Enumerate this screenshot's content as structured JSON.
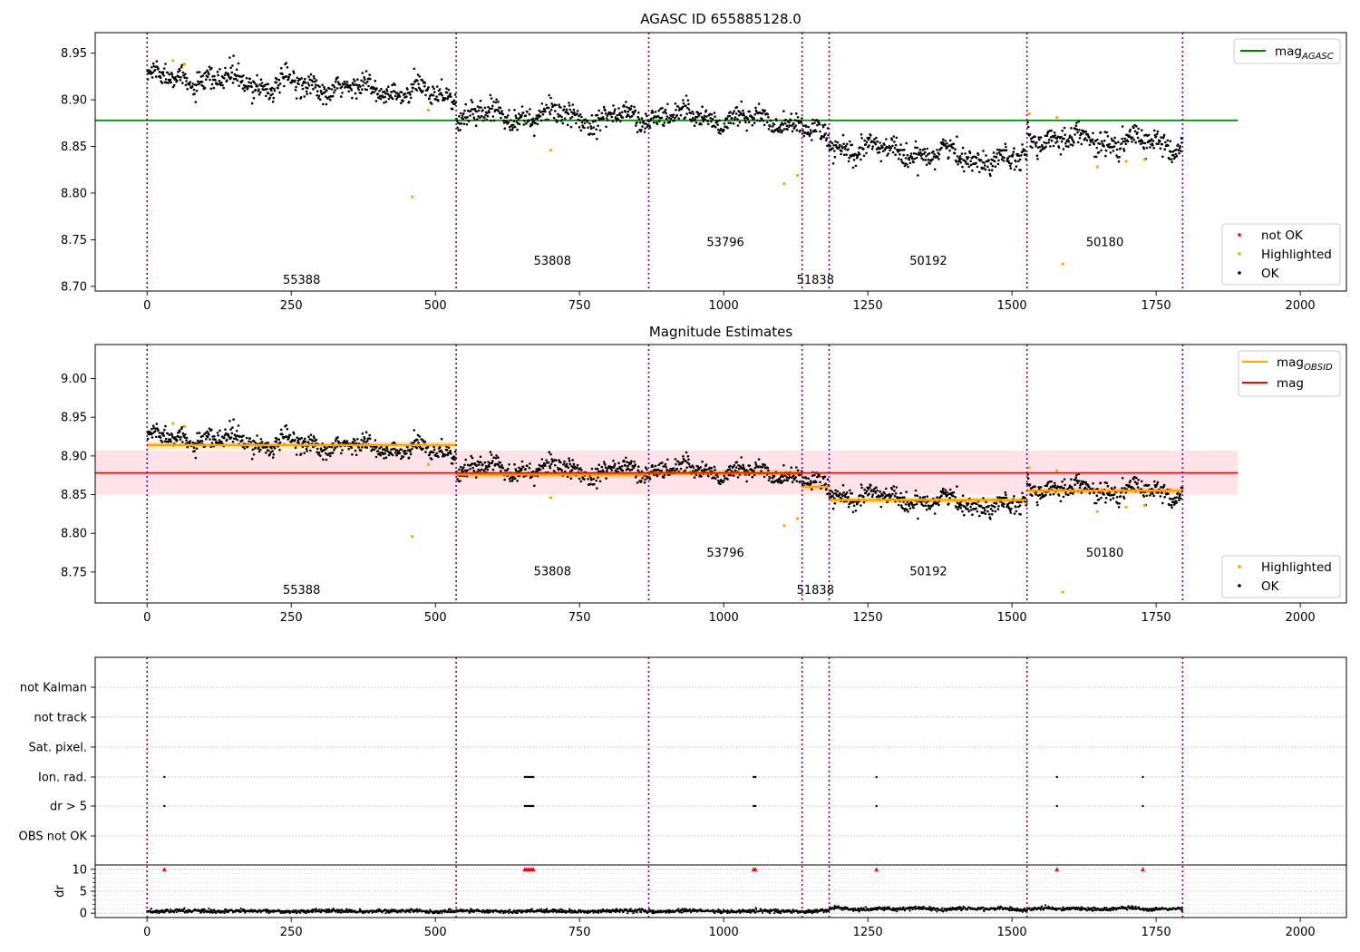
{
  "chart_data": [
    {
      "type": "scatter",
      "title": "AGASC ID 655885128.0",
      "xlabel": "",
      "ylabel": "",
      "xlim": [
        -90,
        2080
      ],
      "ylim": [
        8.695,
        8.972
      ],
      "xticks": [
        0,
        250,
        500,
        750,
        1000,
        1250,
        1500,
        1750,
        2000
      ],
      "yticks": [
        8.7,
        8.75,
        8.8,
        8.85,
        8.9,
        8.95
      ],
      "ytick_labels": [
        "8.70",
        "8.75",
        "8.80",
        "8.85",
        "8.90",
        "8.95"
      ],
      "obs_boundaries": [
        0,
        536,
        870,
        1136,
        1183,
        1526,
        1796
      ],
      "obs_labels": [
        {
          "x": 268,
          "y": 8.703,
          "text": "55388"
        },
        {
          "x": 703,
          "y": 8.723,
          "text": "53808"
        },
        {
          "x": 1003,
          "y": 8.743,
          "text": "53796"
        },
        {
          "x": 1159,
          "y": 8.703,
          "text": "51838"
        },
        {
          "x": 1355,
          "y": 8.723,
          "text": "50192"
        },
        {
          "x": 1661,
          "y": 8.743,
          "text": "50180"
        }
      ],
      "reference_line": {
        "name": "mag_AGASC",
        "y": 8.878,
        "x_range": [
          -90,
          1892
        ],
        "color": "#008000"
      },
      "segments": [
        {
          "x0": 0,
          "x1": 536,
          "y0": 8.925,
          "y1": 8.905
        },
        {
          "x0": 536,
          "x1": 870,
          "y0": 8.885,
          "y1": 8.88
        },
        {
          "x0": 870,
          "x1": 1136,
          "y0": 8.885,
          "y1": 8.875
        },
        {
          "x0": 1136,
          "x1": 1183,
          "y0": 8.866,
          "y1": 8.858
        },
        {
          "x0": 1183,
          "x1": 1526,
          "y0": 8.85,
          "y1": 8.835
        },
        {
          "x0": 1526,
          "x1": 1796,
          "y0": 8.86,
          "y1": 8.852
        }
      ],
      "highlighted_points": [
        {
          "x": 45,
          "y": 8.942
        },
        {
          "x": 65,
          "y": 8.938
        },
        {
          "x": 460,
          "y": 8.796
        },
        {
          "x": 488,
          "y": 8.889
        },
        {
          "x": 700,
          "y": 8.846
        },
        {
          "x": 1105,
          "y": 8.81
        },
        {
          "x": 1128,
          "y": 8.819
        },
        {
          "x": 1530,
          "y": 8.885
        },
        {
          "x": 1578,
          "y": 8.881
        },
        {
          "x": 1588,
          "y": 8.724
        },
        {
          "x": 1648,
          "y": 8.828
        },
        {
          "x": 1698,
          "y": 8.834
        },
        {
          "x": 1730,
          "y": 8.836
        }
      ],
      "legend": {
        "position": "top-right",
        "entries": [
          {
            "label": "mag",
            "sub": "AGASC",
            "color": "#008000",
            "marker": "line"
          }
        ]
      },
      "legend2": {
        "position": "bottom-right",
        "entries": [
          {
            "label": "not OK",
            "color": "#ff0000",
            "marker": "dot"
          },
          {
            "label": "Highlighted",
            "color": "#ffa500",
            "marker": "dot"
          },
          {
            "label": "OK",
            "color": "#000000",
            "marker": "dot"
          }
        ]
      }
    },
    {
      "type": "scatter",
      "title": "Magnitude Estimates",
      "xlabel": "",
      "ylabel": "",
      "xlim": [
        -90,
        2080
      ],
      "ylim": [
        8.71,
        9.044
      ],
      "xticks": [
        0,
        250,
        500,
        750,
        1000,
        1250,
        1500,
        1750,
        2000
      ],
      "yticks": [
        8.75,
        8.8,
        8.85,
        8.9,
        8.95,
        9.0
      ],
      "ytick_labels": [
        "8.75",
        "8.80",
        "8.85",
        "8.90",
        "8.95",
        "9.00"
      ],
      "obs_boundaries": [
        0,
        536,
        870,
        1136,
        1183,
        1526,
        1796
      ],
      "obs_labels": [
        {
          "x": 268,
          "y": 8.722,
          "text": "55388"
        },
        {
          "x": 703,
          "y": 8.746,
          "text": "53808"
        },
        {
          "x": 1003,
          "y": 8.77,
          "text": "53796"
        },
        {
          "x": 1159,
          "y": 8.722,
          "text": "51838"
        },
        {
          "x": 1355,
          "y": 8.746,
          "text": "50192"
        },
        {
          "x": 1661,
          "y": 8.77,
          "text": "50180"
        }
      ],
      "mag": {
        "y": 8.878,
        "band": [
          8.85,
          8.907
        ],
        "x_range": [
          -90,
          1892
        ],
        "color": "#ff0000"
      },
      "mag_obsid": [
        {
          "x0": 0,
          "x1": 536,
          "y": 8.914,
          "err": 0.005
        },
        {
          "x0": 536,
          "x1": 870,
          "y": 8.876,
          "err": 0.004
        },
        {
          "x0": 870,
          "x1": 1136,
          "y": 8.878,
          "err": 0.004
        },
        {
          "x0": 1136,
          "x1": 1183,
          "y": 8.86,
          "err": 0.004
        },
        {
          "x0": 1183,
          "x1": 1526,
          "y": 8.843,
          "err": 0.004
        },
        {
          "x0": 1526,
          "x1": 1796,
          "y": 8.855,
          "err": 0.004
        }
      ],
      "segments": [
        {
          "x0": 0,
          "x1": 536,
          "y0": 8.925,
          "y1": 8.905
        },
        {
          "x0": 536,
          "x1": 870,
          "y0": 8.885,
          "y1": 8.88
        },
        {
          "x0": 870,
          "x1": 1136,
          "y0": 8.885,
          "y1": 8.875
        },
        {
          "x0": 1136,
          "x1": 1183,
          "y0": 8.866,
          "y1": 8.858
        },
        {
          "x0": 1183,
          "x1": 1526,
          "y0": 8.85,
          "y1": 8.835
        },
        {
          "x0": 1526,
          "x1": 1796,
          "y0": 8.86,
          "y1": 8.852
        }
      ],
      "highlighted_points": [
        {
          "x": 45,
          "y": 8.942
        },
        {
          "x": 65,
          "y": 8.938
        },
        {
          "x": 460,
          "y": 8.796
        },
        {
          "x": 488,
          "y": 8.889
        },
        {
          "x": 700,
          "y": 8.846
        },
        {
          "x": 1105,
          "y": 8.81
        },
        {
          "x": 1128,
          "y": 8.819
        },
        {
          "x": 1530,
          "y": 8.885
        },
        {
          "x": 1578,
          "y": 8.881
        },
        {
          "x": 1588,
          "y": 8.724
        },
        {
          "x": 1648,
          "y": 8.828
        },
        {
          "x": 1698,
          "y": 8.834
        },
        {
          "x": 1730,
          "y": 8.836
        }
      ],
      "legend": {
        "position": "top-right",
        "entries": [
          {
            "label": "mag",
            "sub": "OBSID",
            "color": "#ffa500",
            "marker": "line"
          },
          {
            "label": "mag",
            "sub": "",
            "color": "#ff0000",
            "marker": "line"
          }
        ]
      },
      "legend2": {
        "position": "bottom-right",
        "entries": [
          {
            "label": "Highlighted",
            "color": "#ffa500",
            "marker": "dot"
          },
          {
            "label": "OK",
            "color": "#000000",
            "marker": "dot"
          }
        ]
      }
    },
    {
      "type": "scatter",
      "title": "",
      "xlabel": "",
      "ylabel": "dr",
      "xlim": [
        -90,
        2080
      ],
      "obs_boundaries": [
        0,
        536,
        870,
        1136,
        1183,
        1526,
        1796
      ],
      "flags_categories": [
        "not Kalman",
        "not track",
        "Sat. pixel.",
        "Ion. rad.",
        "dr > 5",
        "OBS not OK"
      ],
      "flag_points": {
        "Ion. rad.": [
          30,
          655,
          658,
          661,
          664,
          667,
          670,
          1052,
          1055,
          1265,
          1578,
          1727
        ],
        "dr > 5": [
          30,
          655,
          658,
          661,
          664,
          667,
          670,
          1052,
          1055,
          1265,
          1578,
          1727
        ]
      },
      "dr_ylim": [
        -1,
        11
      ],
      "dr_yticks": [
        0,
        5,
        10
      ],
      "dr_high_points": [
        30,
        655,
        658,
        661,
        664,
        667,
        670,
        1052,
        1055,
        1265,
        1578,
        1727
      ],
      "xticks": [
        0,
        250,
        500,
        750,
        1000,
        1250,
        1500,
        1750,
        2000
      ]
    }
  ],
  "colors": {
    "ok": "#000000",
    "highlighted": "#ffa500",
    "not_ok": "#ff0000",
    "boundary": "#800080",
    "agasc": "#008000",
    "mag": "#ff0000",
    "band": "#ffc0cb",
    "obsid": "#ffa500"
  }
}
